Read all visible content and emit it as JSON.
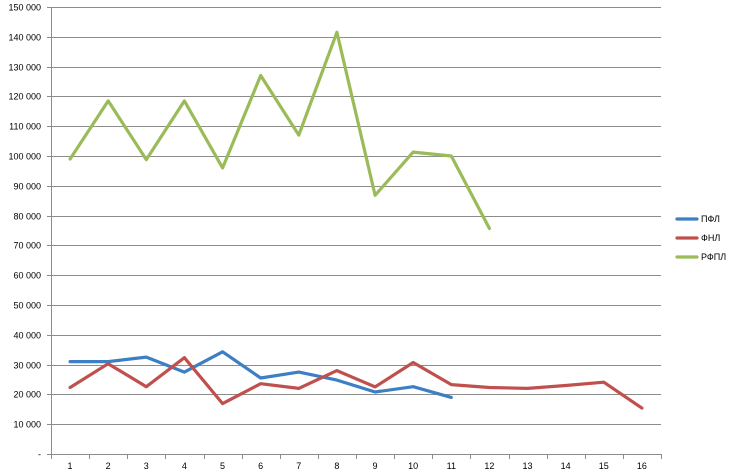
{
  "chart_data": {
    "type": "line",
    "title": "",
    "xlabel": "",
    "ylabel": "",
    "x": [
      1,
      2,
      3,
      4,
      5,
      6,
      7,
      8,
      9,
      10,
      11,
      12,
      13,
      14,
      15,
      16
    ],
    "x_tick_labels": [
      "1",
      "2",
      "3",
      "4",
      "5",
      "6",
      "7",
      "8",
      "9",
      "10",
      "11",
      "12",
      "13",
      "14",
      "15",
      "16"
    ],
    "ylim": [
      0,
      150000
    ],
    "y_tick_values": [
      0,
      10000,
      20000,
      30000,
      40000,
      50000,
      60000,
      70000,
      80000,
      90000,
      100000,
      110000,
      120000,
      130000,
      140000,
      150000
    ],
    "y_tick_labels": [
      "-",
      "10 000",
      "20 000",
      "30 000",
      "40 000",
      "50 000",
      "60 000",
      "70 000",
      "80 000",
      "90 000",
      "100 000",
      "110 000",
      "120 000",
      "130 000",
      "140 000",
      "150 000"
    ],
    "grid": true,
    "legend_position": "right",
    "series": [
      {
        "name": "ПФЛ",
        "color": "#3d7fc4",
        "values": [
          31000,
          31000,
          32500,
          27500,
          34300,
          25500,
          27500,
          24800,
          20800,
          22600,
          19000,
          null,
          null,
          null,
          null,
          null
        ]
      },
      {
        "name": "ФНЛ",
        "color": "#c0504d",
        "values": [
          22300,
          30300,
          22600,
          32300,
          16900,
          23600,
          22000,
          28000,
          22500,
          30700,
          23300,
          22300,
          22000,
          23000,
          24100,
          15400
        ]
      },
      {
        "name": "РФПЛ",
        "color": "#9bbb59",
        "values": [
          99000,
          118500,
          98800,
          118500,
          96000,
          127000,
          107000,
          141500,
          86800,
          101300,
          100000,
          75700,
          null,
          null,
          null,
          null
        ]
      }
    ]
  }
}
